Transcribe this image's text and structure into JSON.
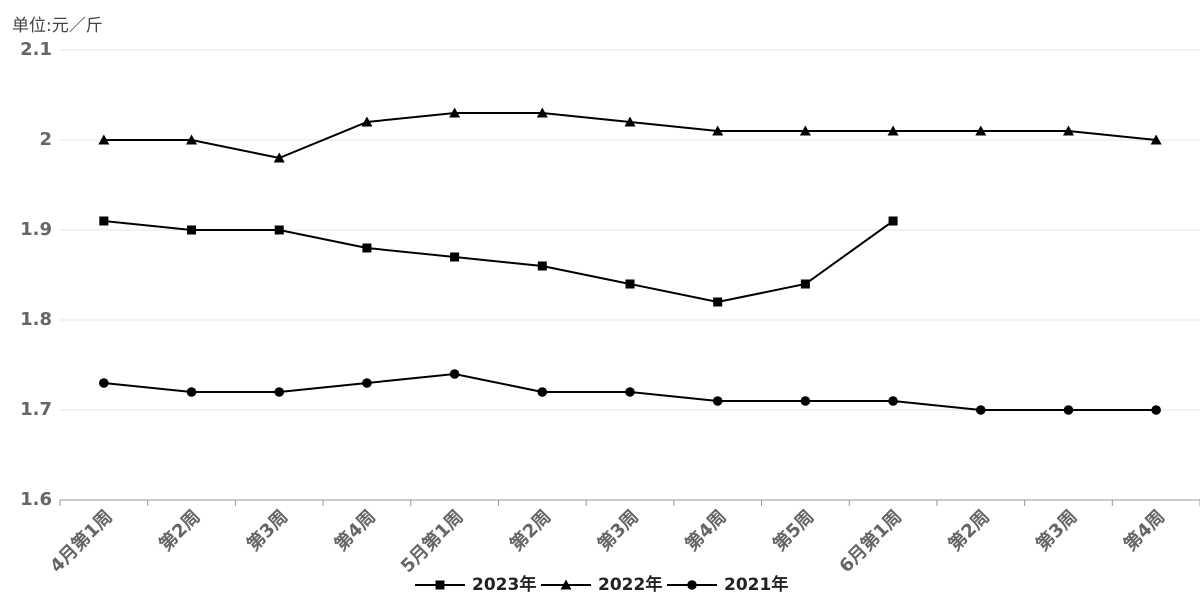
{
  "chart_data": {
    "type": "line",
    "unit_label": "单位:元／斤",
    "categories": [
      "4月第1周",
      "第2周",
      "第3周",
      "第4周",
      "5月第1周",
      "第2周",
      "第3周",
      "第4周",
      "第5周",
      "6月第1周",
      "第2周",
      "第3周",
      "第4周"
    ],
    "series": [
      {
        "name": "2023年",
        "color": "#000000",
        "marker": "square",
        "values": [
          1.91,
          1.9,
          1.9,
          1.88,
          1.87,
          1.86,
          1.84,
          1.82,
          1.84,
          1.91,
          null,
          null,
          null
        ]
      },
      {
        "name": "2022年",
        "color": "#000000",
        "marker": "triangle",
        "values": [
          2.0,
          2.0,
          1.98,
          2.02,
          2.03,
          2.03,
          2.02,
          2.01,
          2.01,
          2.01,
          2.01,
          2.01,
          2.0
        ]
      },
      {
        "name": "2021年",
        "color": "#000000",
        "marker": "circle",
        "values": [
          1.73,
          1.72,
          1.72,
          1.73,
          1.74,
          1.72,
          1.72,
          1.71,
          1.71,
          1.71,
          1.7,
          1.7,
          1.7
        ]
      }
    ],
    "ylim": [
      1.6,
      2.1
    ],
    "yticks": [
      1.6,
      1.7,
      1.8,
      1.9,
      2,
      2.1
    ],
    "grid": true,
    "legend": "bottom"
  }
}
